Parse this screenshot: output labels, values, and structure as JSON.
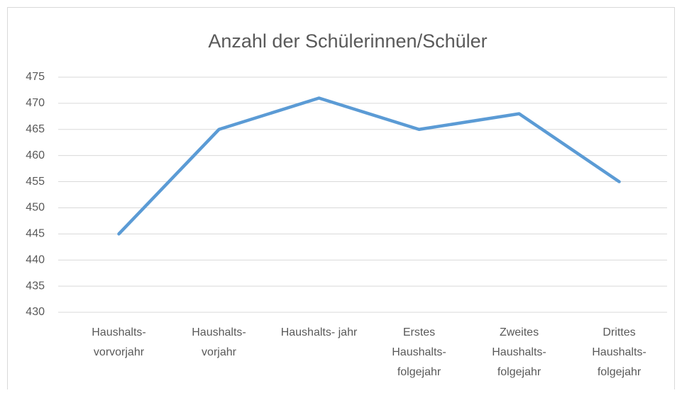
{
  "chart_data": {
    "type": "line",
    "title": "Anzahl der Schülerinnen/Schüler",
    "categories": [
      "Haushalts- vorvorjahr",
      "Haushalts- vorjahr",
      "Haushalts- jahr",
      "Erstes Haushalts- folgejahr",
      "Zweites Haushalts- folgejahr",
      "Drittes Haushalts- folgejahr"
    ],
    "values": [
      445,
      465,
      471,
      465,
      468,
      455
    ],
    "color": "#5b9bd5",
    "ylim": [
      430,
      475
    ],
    "yticks": [
      430,
      435,
      440,
      445,
      450,
      455,
      460,
      465,
      470,
      475
    ],
    "grid": true
  }
}
